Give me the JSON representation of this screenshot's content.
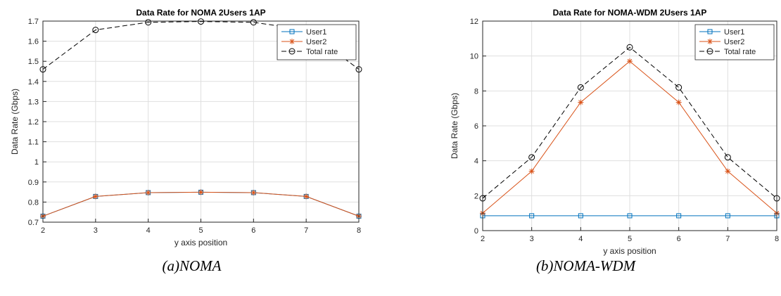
{
  "colors": {
    "user1": "#0072BD",
    "user2": "#D95319",
    "total": "#000000",
    "grid": "#dfdfdf",
    "axis": "#262626"
  },
  "chart_data": [
    {
      "type": "line",
      "title": "Data Rate for NOMA 2Users 1AP",
      "xlabel": "y axis position",
      "ylabel": "Data Rate (Gbps)",
      "caption": "(a)NOMA",
      "x": [
        2,
        3,
        4,
        5,
        6,
        7,
        8
      ],
      "xlim": [
        2,
        8
      ],
      "ylim": [
        0.7,
        1.7
      ],
      "xticks": [
        "2",
        "3",
        "4",
        "5",
        "6",
        "7",
        "8"
      ],
      "yticks": [
        "0.7",
        "0.8",
        "0.9",
        "1",
        "1.1",
        "1.2",
        "1.3",
        "1.4",
        "1.5",
        "1.6",
        "1.7"
      ],
      "grid": true,
      "legend_position": "top-right",
      "series": [
        {
          "name": "User1",
          "marker": "square",
          "style": "solid",
          "values": [
            0.73,
            0.828,
            0.847,
            0.849,
            0.847,
            0.828,
            0.73
          ]
        },
        {
          "name": "User2",
          "marker": "star",
          "style": "solid",
          "values": [
            0.73,
            0.828,
            0.847,
            0.849,
            0.847,
            0.828,
            0.73
          ]
        },
        {
          "name": "Total rate",
          "marker": "circle",
          "style": "dashed",
          "values": [
            1.46,
            1.656,
            1.694,
            1.698,
            1.694,
            1.656,
            1.46
          ]
        }
      ]
    },
    {
      "type": "line",
      "title": "Data Rate for NOMA-WDM 2Users 1AP",
      "xlabel": "y axis position",
      "ylabel": "Data Rate (Gbps)",
      "caption": "(b)NOMA-WDM",
      "x": [
        2,
        3,
        4,
        5,
        6,
        7,
        8
      ],
      "xlim": [
        2,
        8
      ],
      "ylim": [
        0,
        12
      ],
      "xticks": [
        "2",
        "3",
        "4",
        "5",
        "6",
        "7",
        "8"
      ],
      "yticks": [
        "0",
        "2",
        "4",
        "6",
        "8",
        "10",
        "12"
      ],
      "grid": true,
      "legend_position": "top-right",
      "series": [
        {
          "name": "User1",
          "marker": "square",
          "style": "solid",
          "values": [
            0.85,
            0.85,
            0.85,
            0.85,
            0.85,
            0.85,
            0.85
          ]
        },
        {
          "name": "User2",
          "marker": "star",
          "style": "solid",
          "values": [
            1.0,
            3.4,
            7.35,
            9.7,
            7.35,
            3.4,
            1.0
          ]
        },
        {
          "name": "Total rate",
          "marker": "circle",
          "style": "dashed",
          "values": [
            1.85,
            4.2,
            8.2,
            10.5,
            8.2,
            4.2,
            1.85
          ]
        }
      ]
    }
  ]
}
